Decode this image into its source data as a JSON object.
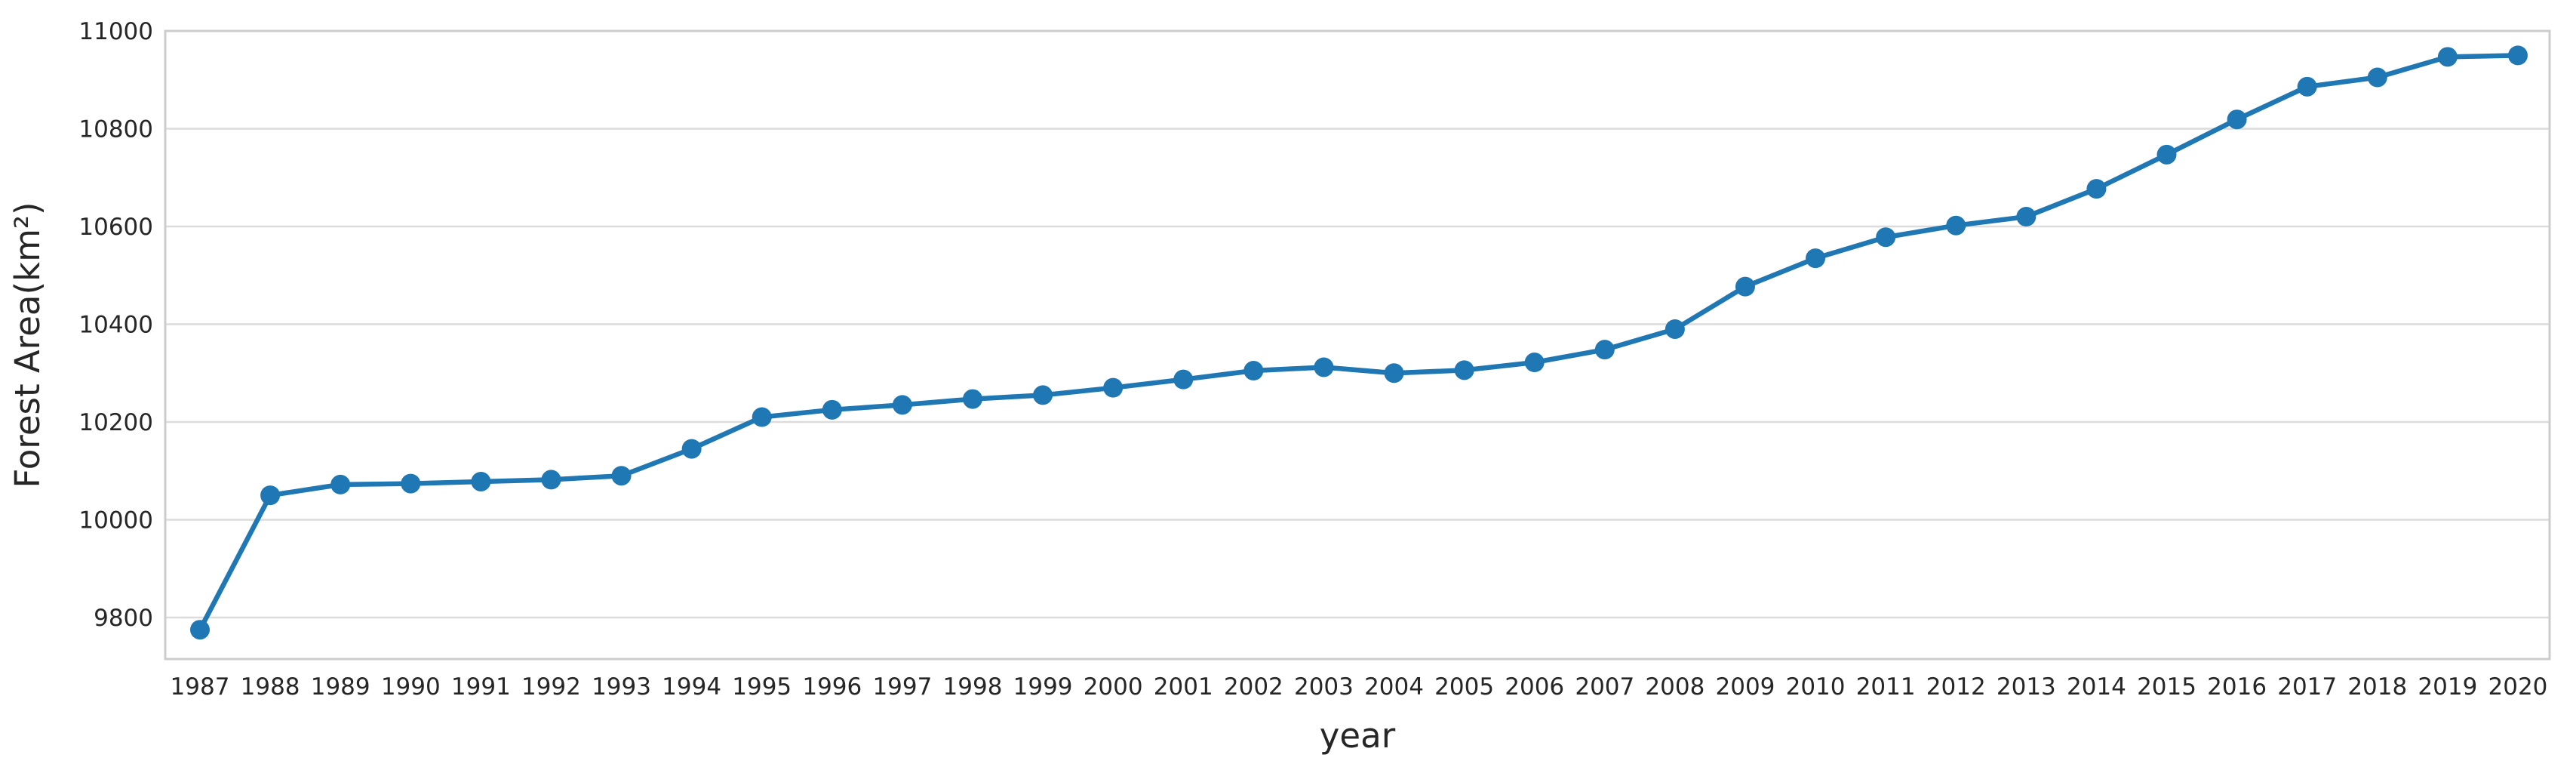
{
  "chart_data": {
    "type": "line",
    "title": "",
    "xlabel": "year",
    "ylabel": "Forest Area(km²)",
    "x": [
      1987,
      1988,
      1989,
      1990,
      1991,
      1992,
      1993,
      1994,
      1995,
      1996,
      1997,
      1998,
      1999,
      2000,
      2001,
      2002,
      2003,
      2004,
      2005,
      2006,
      2007,
      2008,
      2009,
      2010,
      2011,
      2012,
      2013,
      2014,
      2015,
      2016,
      2017,
      2018,
      2019,
      2020
    ],
    "series": [
      {
        "name": "Forest Area",
        "values": [
          9775,
          10050,
          10072,
          10074,
          10078,
          10082,
          10090,
          10145,
          10210,
          10225,
          10235,
          10247,
          10255,
          10270,
          10287,
          10305,
          10312,
          10300,
          10306,
          10322,
          10348,
          10390,
          10477,
          10535,
          10578,
          10602,
          10620,
          10677,
          10747,
          10819,
          10886,
          10905,
          10947,
          10950
        ]
      }
    ],
    "yticks": [
      9800,
      10000,
      10200,
      10400,
      10600,
      10800,
      11000
    ],
    "ylim": [
      9715,
      11000
    ],
    "grid": true,
    "legend": "none",
    "line_color": "#1f77b4",
    "marker": "circle",
    "grid_color": "#dcdcdc",
    "spine_color": "#cccccc",
    "text_color": "#262626",
    "background_color": "#ffffff"
  }
}
